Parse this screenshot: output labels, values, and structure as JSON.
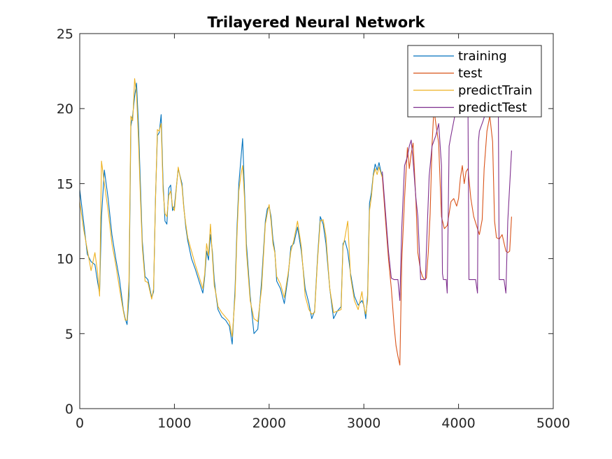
{
  "chart_data": {
    "type": "line",
    "title": "Trilayered Neural Network",
    "xlabel": "",
    "ylabel": "",
    "xlim": [
      0,
      5000
    ],
    "ylim": [
      0,
      25
    ],
    "x_ticks": [
      0,
      1000,
      2000,
      3000,
      4000,
      5000
    ],
    "y_ticks": [
      0,
      5,
      10,
      15,
      20,
      25
    ],
    "grid": false,
    "legend_position": "top-right",
    "series": [
      {
        "name": "training",
        "color": "#0072BD",
        "x": [
          0,
          40,
          80,
          120,
          160,
          190,
          210,
          230,
          260,
          300,
          340,
          380,
          420,
          460,
          480,
          500,
          520,
          540,
          560,
          580,
          600,
          620,
          640,
          660,
          690,
          720,
          760,
          780,
          800,
          820,
          840,
          860,
          880,
          900,
          920,
          940,
          960,
          980,
          1000,
          1040,
          1080,
          1100,
          1120,
          1140,
          1180,
          1220,
          1260,
          1300,
          1320,
          1340,
          1360,
          1380,
          1400,
          1420,
          1440,
          1460,
          1500,
          1540,
          1580,
          1610,
          1640,
          1660,
          1680,
          1700,
          1720,
          1740,
          1760,
          1800,
          1840,
          1880,
          1920,
          1960,
          1980,
          2000,
          2020,
          2040,
          2060,
          2080,
          2120,
          2160,
          2200,
          2230,
          2260,
          2300,
          2340,
          2380,
          2420,
          2450,
          2480,
          2510,
          2540,
          2570,
          2600,
          2640,
          2680,
          2720,
          2760,
          2780,
          2800,
          2830,
          2860,
          2900,
          2940,
          2980,
          3000,
          3020,
          3040,
          3060,
          3080,
          3100,
          3120,
          3140,
          3160,
          3180,
          3195
        ],
        "y": [
          14.6,
          12.5,
          10.3,
          9.8,
          9.6,
          8.4,
          7.7,
          12.8,
          15.9,
          14.0,
          11.6,
          10.0,
          8.6,
          6.6,
          6.0,
          5.6,
          7.5,
          18.8,
          19.6,
          20.8,
          21.7,
          19.0,
          15.0,
          11.2,
          8.8,
          8.6,
          7.4,
          7.8,
          14.0,
          18.2,
          18.4,
          19.6,
          15.0,
          12.5,
          12.3,
          14.7,
          14.9,
          13.2,
          13.5,
          16.0,
          15.0,
          13.4,
          12.1,
          11.2,
          10.0,
          9.3,
          8.5,
          7.7,
          8.8,
          10.5,
          9.9,
          11.6,
          10.5,
          8.6,
          7.5,
          6.6,
          6.1,
          5.9,
          5.5,
          4.3,
          8.0,
          12.0,
          15.0,
          16.5,
          18.0,
          14.5,
          11.0,
          7.5,
          5.0,
          5.3,
          8.5,
          12.5,
          13.3,
          13.5,
          12.8,
          11.3,
          10.5,
          8.5,
          8.0,
          7.0,
          8.8,
          10.8,
          11.0,
          12.1,
          10.5,
          8.0,
          7.0,
          6.0,
          6.5,
          10.0,
          12.8,
          12.3,
          11.0,
          8.0,
          6.0,
          6.5,
          6.8,
          11.0,
          11.2,
          10.5,
          9.0,
          7.5,
          6.9,
          7.2,
          6.9,
          6.0,
          7.6,
          13.7,
          14.4,
          15.6,
          16.3,
          15.9,
          16.4,
          15.8,
          15.5
        ]
      },
      {
        "name": "test",
        "color": "#D95319",
        "x": [
          3195,
          3230,
          3260,
          3290,
          3320,
          3340,
          3360,
          3380,
          3400,
          3430,
          3460,
          3480,
          3500,
          3520,
          3550,
          3570,
          3600,
          3620,
          3640,
          3660,
          3680,
          3700,
          3720,
          3740,
          3760,
          3790,
          3800,
          3820,
          3850,
          3880,
          3900,
          3920,
          3950,
          3980,
          4000,
          4020,
          4040,
          4060,
          4080,
          4100,
          4130,
          4160,
          4190,
          4220,
          4250,
          4270,
          4300,
          4330,
          4360,
          4380,
          4400,
          4430,
          4460,
          4500,
          4520,
          4540,
          4560
        ],
        "y": [
          15.5,
          12.5,
          10.0,
          8.0,
          5.5,
          4.2,
          3.5,
          2.9,
          9.8,
          14.0,
          17.4,
          16.0,
          17.0,
          17.7,
          13.8,
          10.4,
          9.2,
          8.8,
          8.6,
          8.7,
          10.4,
          13.0,
          17.6,
          20.0,
          19.0,
          17.7,
          16.0,
          12.8,
          12.0,
          12.2,
          13.0,
          13.8,
          14.0,
          13.5,
          14.0,
          15.4,
          16.2,
          15.0,
          15.8,
          16.0,
          14.0,
          12.8,
          12.2,
          11.6,
          12.6,
          16.0,
          18.5,
          19.5,
          17.8,
          12.5,
          11.4,
          11.3,
          11.6,
          10.5,
          10.4,
          10.5,
          12.8
        ]
      },
      {
        "name": "predictTrain",
        "color": "#EDB120",
        "x": [
          0,
          40,
          80,
          120,
          160,
          190,
          210,
          230,
          260,
          300,
          340,
          380,
          420,
          460,
          480,
          500,
          520,
          540,
          560,
          580,
          600,
          620,
          640,
          660,
          690,
          720,
          760,
          780,
          800,
          820,
          840,
          860,
          880,
          900,
          920,
          940,
          960,
          980,
          1000,
          1040,
          1080,
          1100,
          1120,
          1140,
          1180,
          1220,
          1260,
          1300,
          1320,
          1340,
          1360,
          1380,
          1400,
          1420,
          1440,
          1460,
          1500,
          1540,
          1580,
          1610,
          1640,
          1660,
          1680,
          1700,
          1720,
          1740,
          1760,
          1800,
          1840,
          1880,
          1920,
          1960,
          1980,
          2000,
          2020,
          2040,
          2060,
          2080,
          2120,
          2160,
          2200,
          2230,
          2260,
          2300,
          2340,
          2380,
          2420,
          2450,
          2480,
          2510,
          2540,
          2570,
          2600,
          2640,
          2680,
          2720,
          2760,
          2780,
          2800,
          2830,
          2860,
          2900,
          2940,
          2980,
          3000,
          3020,
          3040,
          3060,
          3080,
          3100,
          3120,
          3140,
          3160,
          3180,
          3195
        ],
        "y": [
          13.8,
          12.0,
          10.6,
          9.2,
          10.4,
          9.0,
          7.5,
          16.5,
          15.0,
          13.2,
          11.0,
          9.6,
          8.0,
          6.5,
          5.9,
          5.9,
          8.5,
          19.5,
          19.2,
          22.0,
          21.0,
          18.0,
          14.2,
          10.8,
          8.5,
          8.4,
          7.3,
          8.0,
          13.8,
          18.6,
          18.5,
          19.0,
          14.5,
          13.0,
          12.8,
          14.2,
          14.5,
          13.5,
          13.2,
          16.1,
          14.8,
          13.3,
          12.3,
          11.4,
          10.5,
          9.6,
          8.8,
          8.0,
          9.0,
          11.0,
          10.2,
          12.3,
          10.2,
          8.2,
          7.6,
          6.8,
          6.4,
          6.1,
          5.8,
          4.8,
          7.5,
          11.5,
          14.5,
          15.5,
          16.2,
          14.0,
          10.5,
          7.2,
          6.0,
          5.8,
          8.0,
          12.3,
          13.0,
          13.6,
          12.5,
          11.0,
          10.4,
          8.8,
          8.3,
          7.4,
          9.0,
          10.5,
          11.2,
          12.5,
          10.8,
          7.5,
          6.6,
          6.3,
          6.4,
          9.8,
          12.5,
          12.6,
          11.5,
          8.0,
          6.4,
          6.5,
          6.6,
          10.8,
          11.4,
          12.5,
          8.8,
          7.2,
          6.6,
          7.8,
          6.8,
          6.3,
          7.2,
          13.2,
          14.1,
          15.5,
          16.0,
          15.6,
          16.1,
          15.7,
          15.4
        ]
      },
      {
        "name": "predictTest",
        "color": "#7E2F8E",
        "x": [
          3195,
          3230,
          3260,
          3290,
          3320,
          3340,
          3360,
          3380,
          3400,
          3430,
          3460,
          3480,
          3500,
          3520,
          3550,
          3570,
          3600,
          3620,
          3640,
          3650,
          3660,
          3690,
          3720,
          3760,
          3790,
          3820,
          3830,
          3840,
          3850,
          3860,
          3870,
          3880,
          3900,
          3920,
          3960,
          4000,
          4040,
          4080,
          4100,
          4110,
          4120,
          4140,
          4180,
          4200,
          4210,
          4220,
          4260,
          4300,
          4330,
          4360,
          4400,
          4420,
          4430,
          4440,
          4480,
          4500,
          4520,
          4560
        ],
        "y": [
          15.8,
          13.0,
          10.5,
          8.7,
          8.6,
          8.6,
          8.6,
          7.2,
          12.0,
          16.2,
          16.8,
          17.5,
          17.9,
          16.5,
          14.0,
          12.8,
          8.6,
          8.6,
          8.6,
          8.6,
          10.5,
          15.5,
          17.5,
          18.2,
          19.0,
          16.2,
          9.0,
          8.6,
          8.6,
          8.6,
          8.6,
          7.7,
          17.5,
          18.2,
          19.5,
          20.0,
          19.8,
          20.0,
          20.0,
          8.6,
          8.6,
          8.6,
          8.6,
          7.7,
          17.8,
          18.5,
          19.2,
          20.0,
          20.0,
          20.0,
          20.0,
          20.0,
          8.6,
          8.6,
          8.6,
          7.7,
          12.5,
          17.2
        ]
      }
    ]
  }
}
